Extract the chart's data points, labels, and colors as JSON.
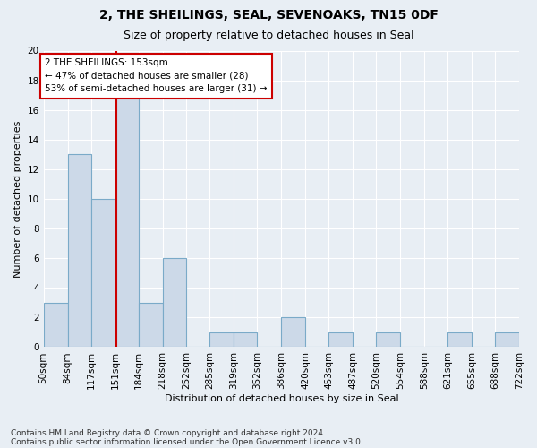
{
  "title1": "2, THE SHEILINGS, SEAL, SEVENOAKS, TN15 0DF",
  "title2": "Size of property relative to detached houses in Seal",
  "xlabel": "Distribution of detached houses by size in Seal",
  "ylabel": "Number of detached properties",
  "footnote1": "Contains HM Land Registry data © Crown copyright and database right 2024.",
  "footnote2": "Contains public sector information licensed under the Open Government Licence v3.0.",
  "bin_edges": [
    50,
    84,
    117,
    151,
    184,
    218,
    252,
    285,
    319,
    352,
    386,
    420,
    453,
    487,
    520,
    554,
    588,
    621,
    655,
    688,
    722
  ],
  "bin_labels": [
    "50sqm",
    "84sqm",
    "117sqm",
    "151sqm",
    "184sqm",
    "218sqm",
    "252sqm",
    "285sqm",
    "319sqm",
    "352sqm",
    "386sqm",
    "420sqm",
    "453sqm",
    "487sqm",
    "520sqm",
    "554sqm",
    "588sqm",
    "621sqm",
    "655sqm",
    "688sqm",
    "722sqm"
  ],
  "bar_heights": [
    3,
    13,
    10,
    17,
    3,
    6,
    0,
    1,
    1,
    0,
    2,
    0,
    1,
    0,
    1,
    0,
    0,
    1,
    0,
    1
  ],
  "bar_color": "#ccd9e8",
  "bar_edgecolor": "#7aaac8",
  "property_size": 153,
  "annotation_line1": "2 THE SHEILINGS: 153sqm",
  "annotation_line2": "← 47% of detached houses are smaller (28)",
  "annotation_line3": "53% of semi-detached houses are larger (31) →",
  "vline_color": "#cc0000",
  "ylim": [
    0,
    20
  ],
  "yticks": [
    0,
    2,
    4,
    6,
    8,
    10,
    12,
    14,
    16,
    18,
    20
  ],
  "background_color": "#e8eef4",
  "plot_bg_color": "#e8eef4",
  "grid_color": "#ffffff",
  "annotation_box_facecolor": "#ffffff",
  "annotation_box_edgecolor": "#cc0000",
  "title1_fontsize": 10,
  "title2_fontsize": 9,
  "axis_label_fontsize": 8,
  "tick_fontsize": 7.5,
  "annotation_fontsize": 7.5,
  "footnote_fontsize": 6.5
}
